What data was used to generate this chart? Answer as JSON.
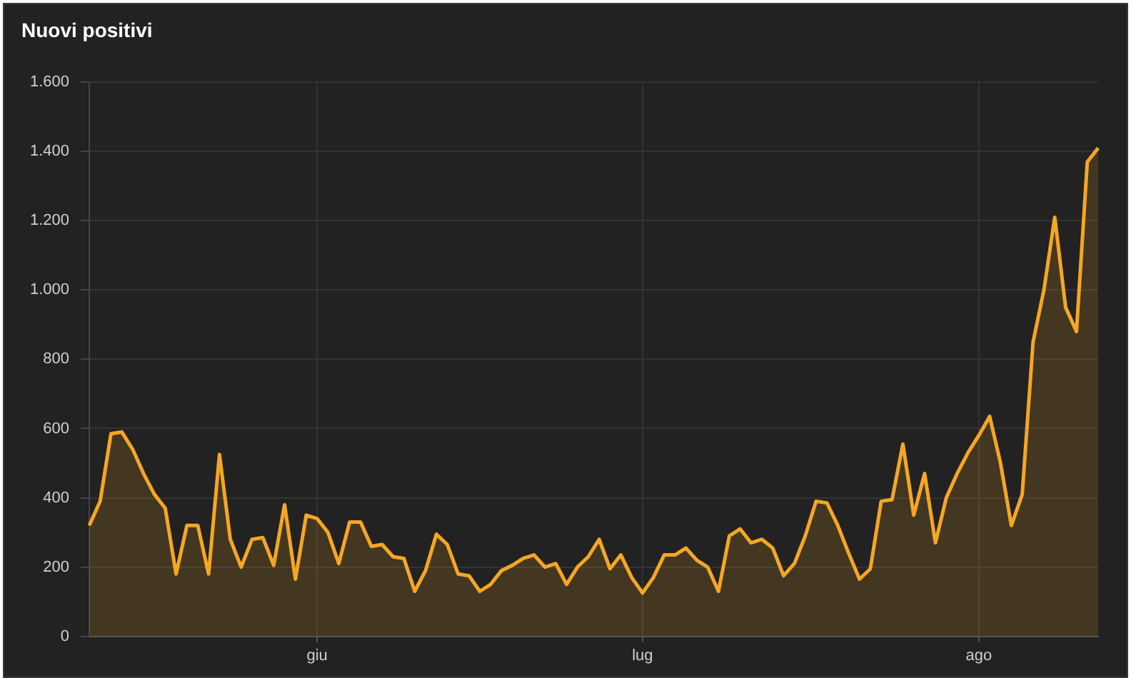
{
  "chart_data": {
    "type": "area",
    "title": "Nuovi positivi",
    "categories": [
      null,
      null,
      null,
      null,
      null,
      null,
      null,
      null,
      null,
      null,
      null,
      null,
      null,
      null,
      null,
      null,
      null,
      null,
      null,
      null,
      null,
      "giu",
      null,
      null,
      null,
      null,
      null,
      null,
      null,
      null,
      null,
      null,
      null,
      null,
      null,
      null,
      null,
      null,
      null,
      null,
      null,
      null,
      null,
      null,
      null,
      null,
      null,
      null,
      null,
      null,
      null,
      "lug",
      null,
      null,
      null,
      null,
      null,
      null,
      null,
      null,
      null,
      null,
      null,
      null,
      null,
      null,
      null,
      null,
      null,
      null,
      null,
      null,
      null,
      null,
      null,
      null,
      null,
      null,
      null,
      null,
      null,
      null,
      "ago",
      null,
      null,
      null,
      null,
      null,
      null,
      null,
      null,
      null,
      null,
      null
    ],
    "series": [
      {
        "color": "#f5a623",
        "values": [
          320,
          390,
          585,
          590,
          540,
          470,
          410,
          370,
          180,
          320,
          320,
          180,
          525,
          280,
          200,
          280,
          285,
          205,
          380,
          165,
          350,
          340,
          300,
          210,
          330,
          330,
          260,
          265,
          230,
          225,
          130,
          190,
          295,
          265,
          180,
          175,
          130,
          150,
          190,
          205,
          225,
          235,
          200,
          210,
          150,
          200,
          230,
          280,
          195,
          235,
          170,
          125,
          170,
          235,
          235,
          255,
          220,
          200,
          130,
          290,
          310,
          270,
          280,
          255,
          175,
          210,
          290,
          390,
          385,
          320,
          240,
          165,
          195,
          390,
          395,
          555,
          350,
          470,
          270,
          400,
          470,
          530,
          580,
          635,
          500,
          320,
          410,
          850,
          1000,
          1210,
          950,
          880,
          1370,
          1410
        ]
      }
    ],
    "ylim": [
      0,
      1600
    ],
    "yticks": [
      0,
      {
        "value": 200,
        "label": "200"
      },
      {
        "value": 400,
        "label": "400"
      },
      {
        "value": 600,
        "label": "600"
      },
      {
        "value": 800,
        "label": "800"
      },
      {
        "value": 1000,
        "label": "1.000"
      },
      {
        "value": 1200,
        "label": "1.200"
      },
      {
        "value": 1400,
        "label": "1.400"
      },
      {
        "value": 1600,
        "label": "1.600"
      }
    ],
    "grid": true,
    "legend": false,
    "marker": "none",
    "line_style": "solid"
  }
}
